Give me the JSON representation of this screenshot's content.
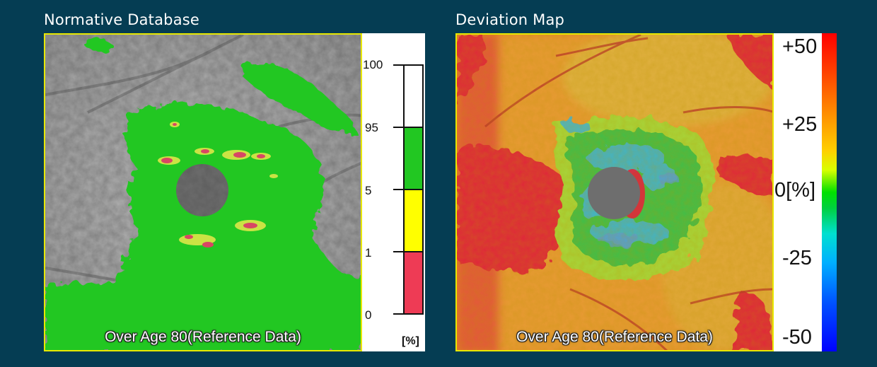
{
  "left_panel": {
    "title": "Normative Database",
    "reference_label": "Over Age 80(Reference Data)",
    "legend": {
      "ticks": [
        "100",
        "95",
        "5",
        "1",
        "0"
      ],
      "unit": "[%]",
      "bands": [
        {
          "range": "95-100",
          "color": "#ffffff"
        },
        {
          "range": "5-95",
          "color": "#22c722"
        },
        {
          "range": "1-5",
          "color": "#ffff00"
        },
        {
          "range": "0-1",
          "color": "#ee3b55"
        }
      ]
    }
  },
  "right_panel": {
    "title": "Deviation Map",
    "reference_label": "Over Age 80(Reference Data)",
    "legend": {
      "ticks": [
        "+50",
        "+25",
        "0[%]",
        "-25",
        "-50"
      ]
    }
  },
  "colors": {
    "background": "#053d53",
    "border": "#e8e800",
    "normal_green": "#22c722",
    "abnormal_red": "#ee3b55",
    "borderline_yellow": "#ffff00"
  }
}
